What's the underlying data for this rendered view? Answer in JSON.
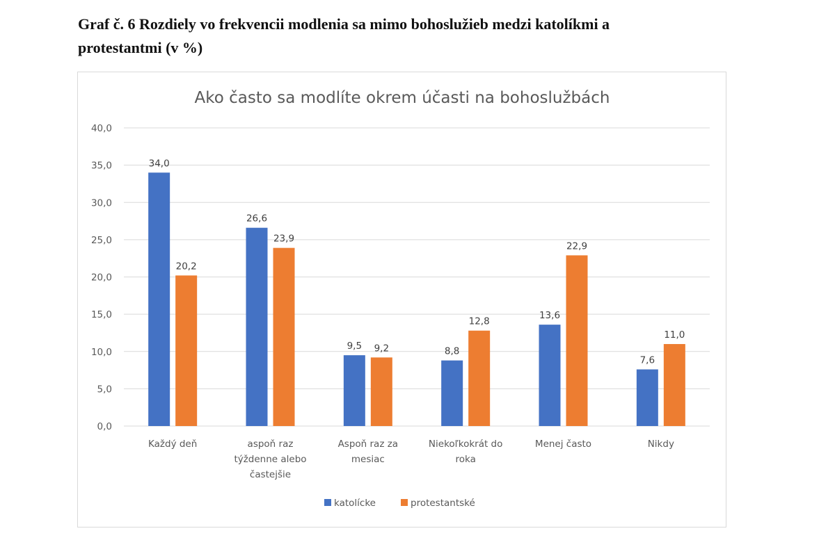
{
  "document": {
    "caption": "Graf č. 6 Rozdiely vo frekvencii modlenia sa mimo bohoslužieb medzi katolíkmi a protestantmi (v %)",
    "caption_lines": [
      "Graf č. 6 Rozdiely vo frekvencii modlenia sa mimo bohoslužieb medzi katolíkmi a",
      "protestantmi (v %)"
    ]
  },
  "chart_data": {
    "type": "bar",
    "title": "Ako často sa modlíte okrem účasti na bohoslužbách",
    "xlabel": "",
    "ylabel": "",
    "ylim": [
      0,
      40
    ],
    "yticks": [
      0,
      5,
      10,
      15,
      20,
      25,
      30,
      35,
      40
    ],
    "ytick_labels": [
      "0,0",
      "5,0",
      "10,0",
      "15,0",
      "20,0",
      "25,0",
      "30,0",
      "35,0",
      "40,0"
    ],
    "grid": true,
    "legend_position": "bottom",
    "categories": [
      "Každý deň",
      "aspoň raz týždenne alebo častejšie",
      "Aspoň raz za mesiac",
      "Niekoľkokrát do roka",
      "Menej často",
      "Nikdy"
    ],
    "category_lines": [
      [
        "Každý deň"
      ],
      [
        "aspoň raz",
        "týždenne alebo",
        "častejšie"
      ],
      [
        "Aspoň raz za",
        "mesiac"
      ],
      [
        "Niekoľkokrát do",
        "roka"
      ],
      [
        "Menej často"
      ],
      [
        "Nikdy"
      ]
    ],
    "series": [
      {
        "name": "katolícke",
        "color": "#4472c4",
        "values": [
          34.0,
          26.6,
          9.5,
          8.8,
          13.6,
          7.6
        ],
        "labels": [
          "34,0",
          "26,6",
          "9,5",
          "8,8",
          "13,6",
          "7,6"
        ]
      },
      {
        "name": "protestantské",
        "color": "#ed7d31",
        "values": [
          20.2,
          23.9,
          9.2,
          12.8,
          22.9,
          11.0
        ],
        "labels": [
          "20,2",
          "23,9",
          "9,2",
          "12,8",
          "22,9",
          "11,0"
        ]
      }
    ],
    "gridline_color": "#d9d9d9"
  }
}
